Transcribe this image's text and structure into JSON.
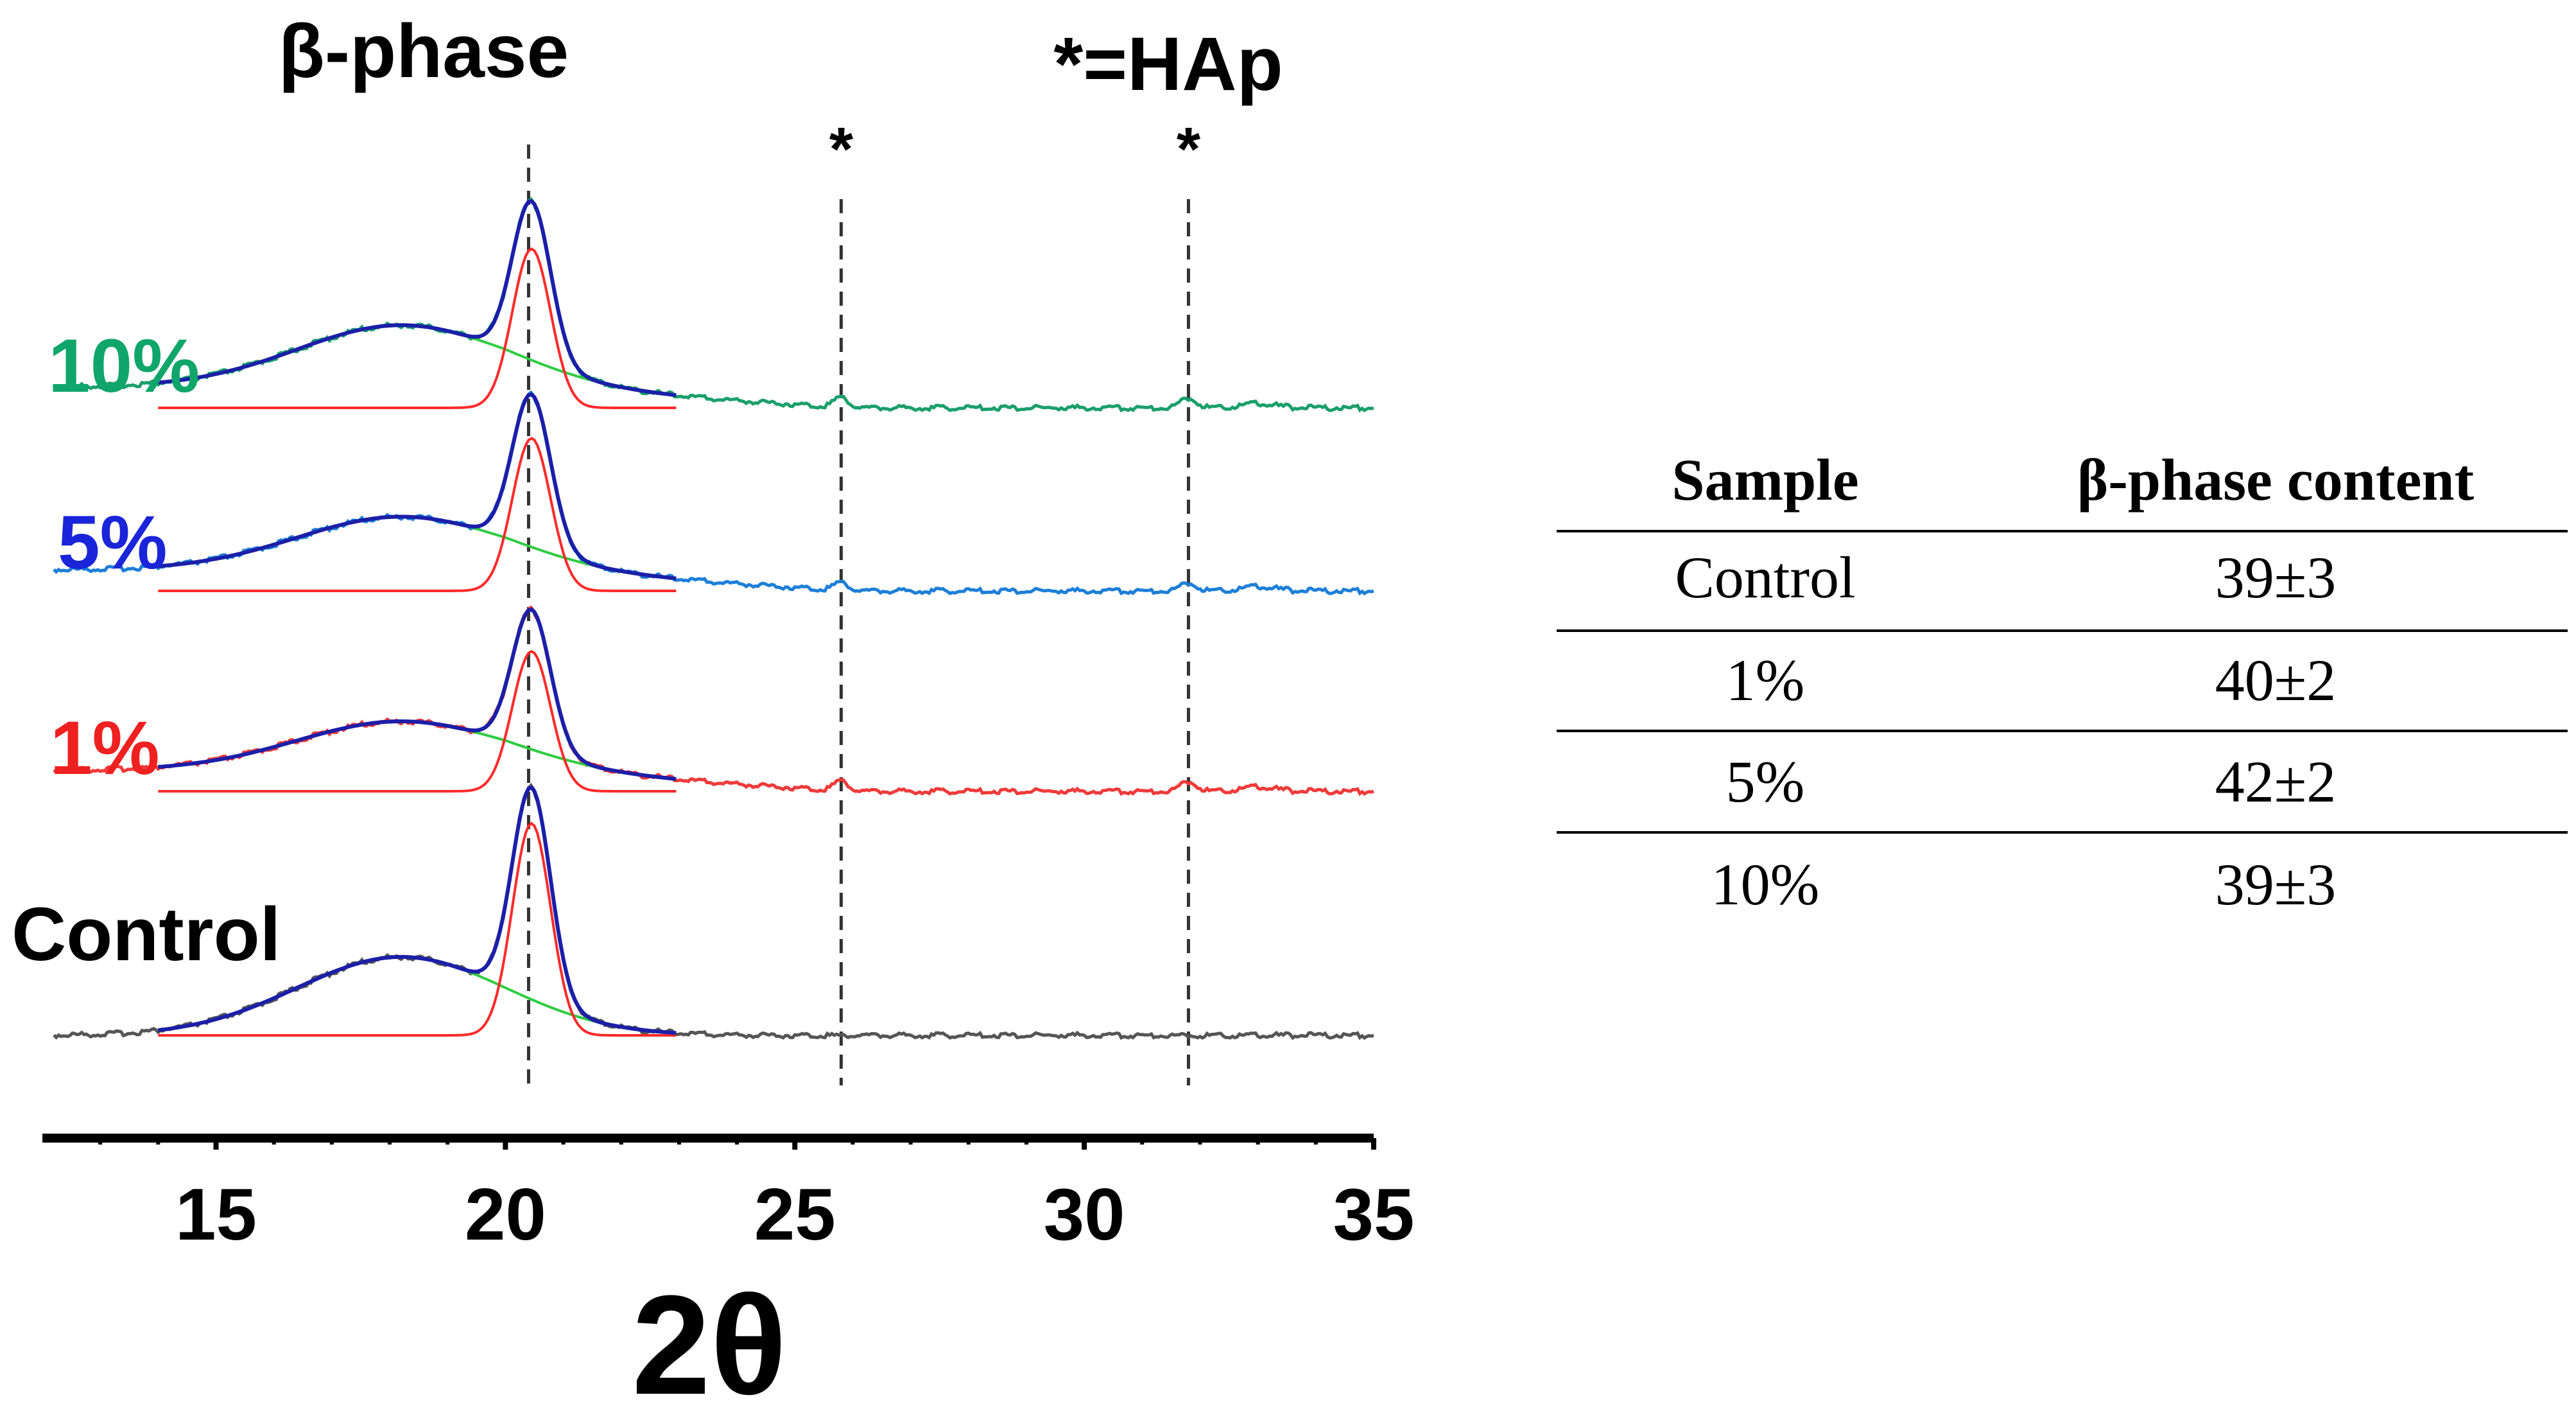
{
  "chart_data": {
    "type": "line",
    "title": "β-phase",
    "annotation": "*=HAp",
    "xlabel": "2θ",
    "ylabel": "",
    "xlim": [
      12,
      35
    ],
    "x_ticks": [
      "15",
      "20",
      "25",
      "30",
      "35"
    ],
    "reference_lines": [
      {
        "x": 20.4,
        "label": "β-phase"
      },
      {
        "x": 25.8,
        "label": "*"
      },
      {
        "x": 31.8,
        "label": "*"
      }
    ],
    "fit": {
      "range": [
        14,
        23
      ],
      "components": [
        "amorphous halo (green)",
        "β-phase peak (red)",
        "cumulative fit (navy)"
      ]
    },
    "series": [
      {
        "name": "10%",
        "color": "#1a9f6c",
        "peak": 0.75,
        "halo": 0.29,
        "hap": 0.05
      },
      {
        "name": "5%",
        "color": "#1d7fd8",
        "peak": 0.72,
        "halo": 0.25,
        "hap": 0.04
      },
      {
        "name": "1%",
        "color": "#ef3a3a",
        "peak": 0.66,
        "halo": 0.23,
        "hap": 0.05
      },
      {
        "name": "Control",
        "color": "#555555",
        "peak": 1.0,
        "halo": 0.37,
        "hap": 0.0
      }
    ],
    "label_colors": [
      "#10a56a",
      "#1a24d8",
      "#ef2020",
      "#000000"
    ]
  },
  "table": {
    "headers": [
      "Sample",
      "β-phase content"
    ],
    "rows": [
      [
        "Control",
        "39±3"
      ],
      [
        "1%",
        "40±2"
      ],
      [
        "5%",
        "42±2"
      ],
      [
        "10%",
        "39±3"
      ]
    ]
  }
}
